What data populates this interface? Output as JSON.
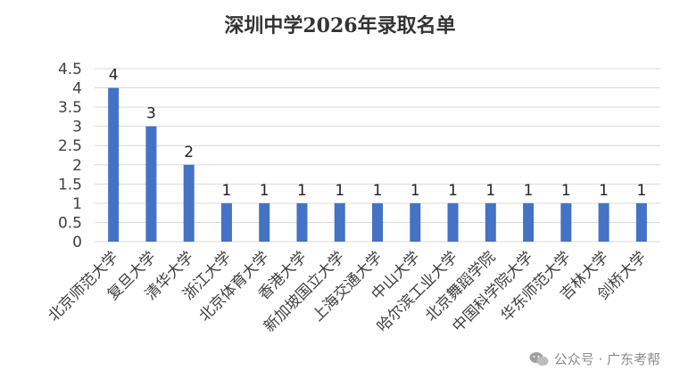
{
  "chart_data": {
    "type": "bar",
    "title": "深圳中学2026年录取名单",
    "categories": [
      "北京师范大学",
      "复旦大学",
      "清华大学",
      "浙江大学",
      "北京体育大学",
      "香港大学",
      "新加坡国立大学",
      "上海交通大学",
      "中山大学",
      "哈尔滨工业大学",
      "北京舞蹈学院",
      "中国科学院大学",
      "华东师范大学",
      "吉林大学",
      "剑桥大学"
    ],
    "values": [
      4,
      3,
      2,
      1,
      1,
      1,
      1,
      1,
      1,
      1,
      1,
      1,
      1,
      1,
      1
    ],
    "ylim": [
      0,
      4.5
    ],
    "yticks": [
      "0",
      "0.5",
      "1",
      "1.5",
      "2",
      "2.5",
      "3",
      "3.5",
      "4",
      "4.5"
    ],
    "grid": true,
    "legend": "none",
    "bar_color": "#4472c4"
  },
  "watermark": {
    "text": "公众号 · 广东考帮",
    "icon": "wechat-icon"
  }
}
